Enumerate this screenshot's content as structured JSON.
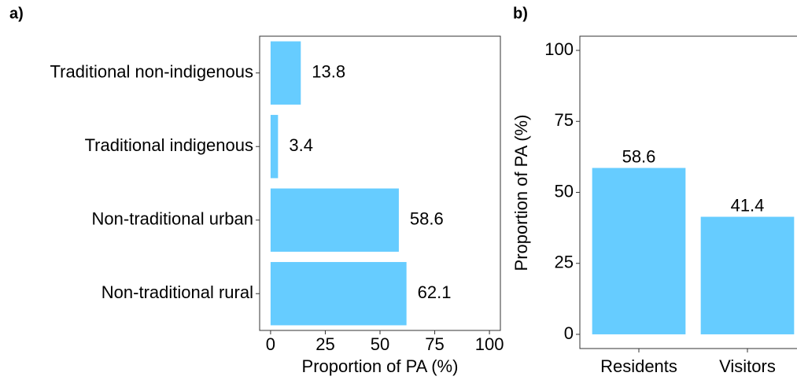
{
  "chart_data": [
    {
      "type": "barh",
      "panel_label": "a)",
      "categories": [
        "Traditional non-indigenous",
        "Traditional indigenous",
        "Non-traditional urban",
        "Non-traditional rural"
      ],
      "values": [
        13.8,
        3.4,
        58.6,
        62.1
      ],
      "color": "#66ccff",
      "xlabel": "Proportion of PA (%)",
      "xlim": [
        -5,
        105
      ],
      "xticks": [
        0,
        25,
        50,
        75,
        100
      ]
    },
    {
      "type": "bar",
      "panel_label": "b)",
      "categories": [
        "Residents",
        "Visitors"
      ],
      "values": [
        58.6,
        41.4
      ],
      "color": "#66ccff",
      "ylabel": "Proportion of PA (%)",
      "ylim": [
        -5,
        105
      ],
      "yticks": [
        0,
        25,
        50,
        75,
        100
      ]
    }
  ]
}
